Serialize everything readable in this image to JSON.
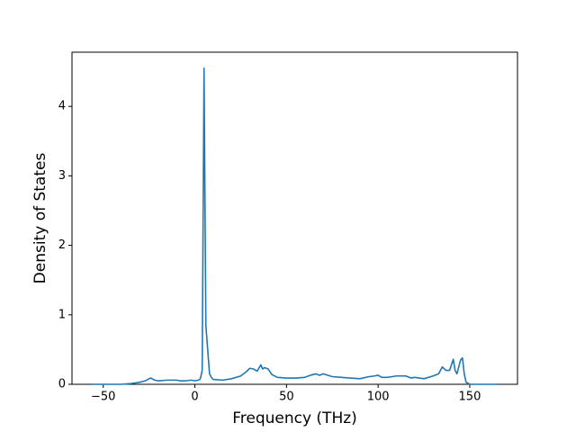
{
  "chart_data": {
    "type": "line",
    "xlabel": "Frequency (THz)",
    "ylabel": "Density of States",
    "x": [
      -56,
      -40,
      -35,
      -30,
      -27,
      -25,
      -24,
      -22,
      -20,
      -15,
      -10,
      -8,
      -5,
      -2,
      0,
      2,
      3,
      4,
      5,
      6,
      7,
      8,
      9,
      10,
      15,
      20,
      25,
      28,
      30,
      32,
      34,
      36,
      37,
      38,
      40,
      42,
      45,
      50,
      55,
      60,
      63,
      66,
      68,
      70,
      75,
      80,
      85,
      90,
      95,
      98,
      100,
      102,
      105,
      110,
      115,
      118,
      120,
      125,
      130,
      133,
      135,
      137,
      139,
      140,
      141,
      142,
      143,
      145,
      146,
      147,
      148,
      150,
      160,
      165
    ],
    "series": [
      {
        "color": "#1f77b4",
        "values": [
          0,
          0,
          0.01,
          0.03,
          0.05,
          0.08,
          0.09,
          0.06,
          0.05,
          0.06,
          0.06,
          0.05,
          0.05,
          0.06,
          0.05,
          0.06,
          0.08,
          0.2,
          4.55,
          0.85,
          0.5,
          0.15,
          0.1,
          0.07,
          0.06,
          0.08,
          0.12,
          0.18,
          0.23,
          0.22,
          0.19,
          0.28,
          0.22,
          0.24,
          0.22,
          0.14,
          0.1,
          0.09,
          0.09,
          0.1,
          0.13,
          0.15,
          0.13,
          0.15,
          0.11,
          0.1,
          0.09,
          0.08,
          0.11,
          0.12,
          0.13,
          0.1,
          0.1,
          0.12,
          0.12,
          0.09,
          0.1,
          0.08,
          0.12,
          0.15,
          0.25,
          0.2,
          0.2,
          0.28,
          0.36,
          0.2,
          0.15,
          0.35,
          0.38,
          0.15,
          0.03,
          0,
          0,
          0
        ]
      }
    ],
    "xlim": [
      -67.05,
      176.05
    ],
    "xticks": [
      {
        "value": -50,
        "label": "−50"
      },
      0,
      50,
      100,
      150
    ],
    "ylim": [
      0,
      4.78
    ],
    "yticks": [
      0,
      1,
      2,
      3,
      4
    ]
  }
}
